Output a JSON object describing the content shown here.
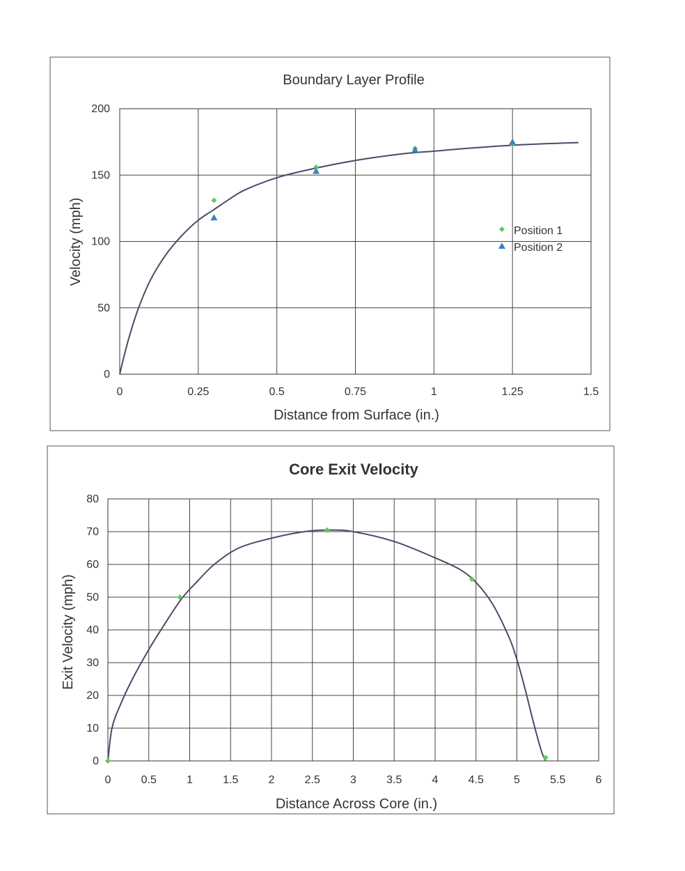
{
  "chart_data": [
    {
      "type": "scatter",
      "title": "Boundary Layer Profile",
      "xlabel": "Distance from Surface (in.)",
      "ylabel": "Velocity (mph)",
      "xlim": [
        0,
        1.5
      ],
      "ylim": [
        0,
        200
      ],
      "xticks": [
        "0",
        "0.25",
        "0.5",
        "0.75",
        "1",
        "1.25",
        "1.5"
      ],
      "yticks": [
        "0",
        "50",
        "100",
        "150",
        "200"
      ],
      "grid": true,
      "legend_position": "right",
      "series": [
        {
          "name": "Position 1",
          "marker": "diamond",
          "color": "#5ccb5c",
          "points": [
            [
              0.3,
              131
            ],
            [
              0.625,
              156
            ],
            [
              0.94,
              170
            ],
            [
              1.25,
              173
            ]
          ]
        },
        {
          "name": "Position 2",
          "marker": "triangle",
          "color": "#3f7fbf",
          "points": [
            [
              0.3,
              118
            ],
            [
              0.625,
              153
            ],
            [
              0.94,
              169
            ],
            [
              1.25,
              175
            ]
          ]
        }
      ],
      "trendline": [
        [
          0,
          0
        ],
        [
          0.01,
          10
        ],
        [
          0.03,
          28
        ],
        [
          0.06,
          50
        ],
        [
          0.1,
          72
        ],
        [
          0.15,
          91
        ],
        [
          0.2,
          105
        ],
        [
          0.25,
          116
        ],
        [
          0.3,
          124
        ],
        [
          0.35,
          132
        ],
        [
          0.4,
          139
        ],
        [
          0.5,
          148
        ],
        [
          0.6,
          154
        ],
        [
          0.75,
          161
        ],
        [
          0.9,
          166
        ],
        [
          1.0,
          168
        ],
        [
          1.1,
          170
        ],
        [
          1.25,
          172.5
        ],
        [
          1.4,
          174
        ],
        [
          1.46,
          174.5
        ]
      ]
    },
    {
      "type": "scatter",
      "title": "Core Exit Velocity",
      "xlabel": "Distance Across Core (in.)",
      "ylabel": "Exit Velocity (mph)",
      "xlim": [
        0,
        6
      ],
      "ylim": [
        0,
        80
      ],
      "xticks": [
        "0",
        "0.5",
        "1",
        "1.5",
        "2",
        "2.5",
        "3",
        "3.5",
        "4",
        "4.5",
        "5",
        "5.5",
        "6"
      ],
      "yticks": [
        "0",
        "10",
        "20",
        "30",
        "40",
        "50",
        "60",
        "70",
        "80"
      ],
      "grid": true,
      "series": [
        {
          "marker": "diamond",
          "color": "#5ccb5c",
          "points": [
            [
              0,
              0
            ],
            [
              0.88,
              50
            ],
            [
              2.68,
              70.5
            ],
            [
              4.45,
              55.5
            ],
            [
              5.35,
              1
            ]
          ]
        }
      ],
      "trendline": [
        [
          0,
          0
        ],
        [
          0.05,
          10
        ],
        [
          0.15,
          17
        ],
        [
          0.3,
          25
        ],
        [
          0.5,
          34
        ],
        [
          0.7,
          42
        ],
        [
          0.9,
          49.5
        ],
        [
          1.1,
          55
        ],
        [
          1.3,
          60
        ],
        [
          1.6,
          65
        ],
        [
          2.0,
          68
        ],
        [
          2.4,
          70
        ],
        [
          2.7,
          70.5
        ],
        [
          3.0,
          70
        ],
        [
          3.5,
          67
        ],
        [
          4.0,
          62
        ],
        [
          4.3,
          58.5
        ],
        [
          4.5,
          54.5
        ],
        [
          4.7,
          48
        ],
        [
          4.9,
          38
        ],
        [
          5.0,
          31
        ],
        [
          5.1,
          22
        ],
        [
          5.2,
          12
        ],
        [
          5.3,
          3
        ],
        [
          5.35,
          0
        ]
      ]
    }
  ]
}
